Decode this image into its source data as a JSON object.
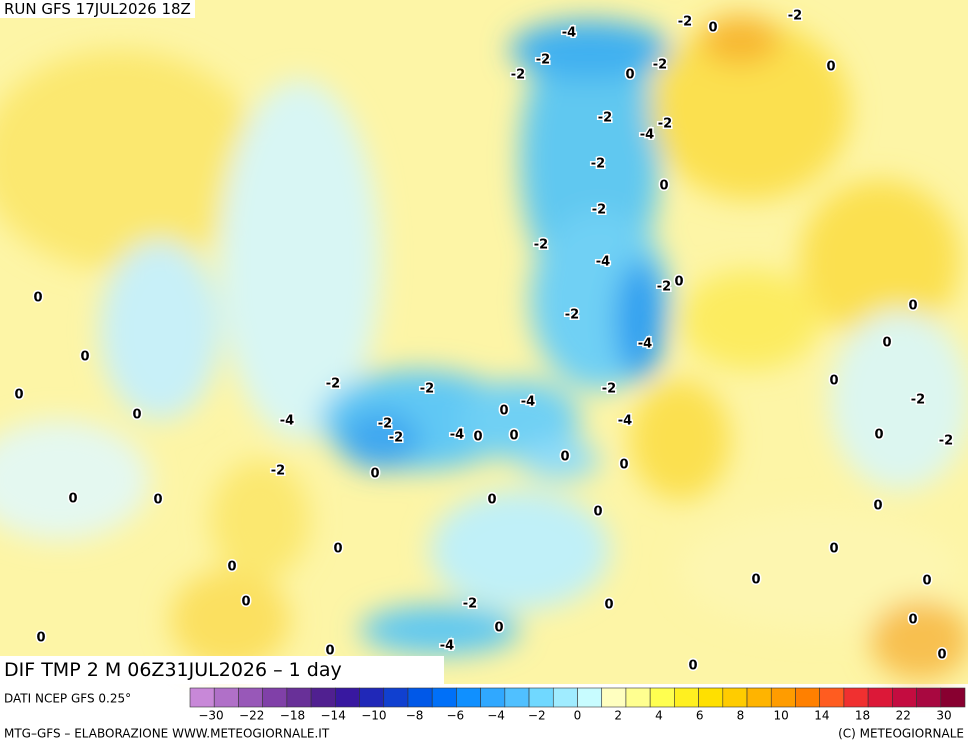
{
  "header": {
    "run": "RUN GFS 17JUL2026 18Z"
  },
  "map": {
    "title": "DIF TMP 2 M 06Z31JUL2026 – 1 day",
    "contour_labels": [
      "-4",
      "-2",
      "0",
      "-2",
      "-2",
      "-2",
      "0",
      "-2",
      "0",
      "-2",
      "-2",
      "-4",
      "-2",
      "0",
      "-2",
      "-2",
      "-4",
      "-2",
      "0",
      "0",
      "0",
      "-2",
      "0",
      "-4",
      "0",
      "-2",
      "-2",
      "-2",
      "0",
      "0",
      "-2",
      "-4",
      "0",
      "0",
      "-4",
      "-2",
      "-4",
      "-2",
      "-4",
      "0",
      "0",
      "0",
      "-2",
      "0",
      "0",
      "-2",
      "0",
      "0",
      "0",
      "0",
      "0",
      "0",
      "0",
      "0",
      "0",
      "0",
      "0",
      "0",
      "0",
      "-2",
      "0",
      "0",
      "0",
      "0",
      "-4",
      "0",
      "0"
    ]
  },
  "legend": {
    "source": "DATI NCEP GFS 0.25°",
    "colors": [
      "#c888d8",
      "#b070c8",
      "#9858b8",
      "#8040a8",
      "#683098",
      "#502090",
      "#3818a0",
      "#2028b8",
      "#1040d0",
      "#0058e8",
      "#0070f8",
      "#1090ff",
      "#30a8ff",
      "#50c0ff",
      "#70d8ff",
      "#a0ecff",
      "#c8fcff",
      "#ffffc0",
      "#ffff90",
      "#ffff50",
      "#fff020",
      "#ffe000",
      "#ffcc00",
      "#ffb400",
      "#ff9c00",
      "#ff8000",
      "#ff5c20",
      "#f03030",
      "#dc1838",
      "#c40c40",
      "#a80840",
      "#880030"
    ],
    "tick_labels": [
      "−30",
      "−22",
      "−18",
      "−14",
      "−10",
      "−8",
      "−6",
      "−4",
      "−2",
      "0",
      "2",
      "4",
      "6",
      "8",
      "10",
      "14",
      "18",
      "22",
      "30"
    ]
  },
  "footer": {
    "left": "MTG–GFS – ELABORAZIONE WWW.METEOGIORNALE.IT",
    "right": "(C) METEOGIORNALE"
  }
}
